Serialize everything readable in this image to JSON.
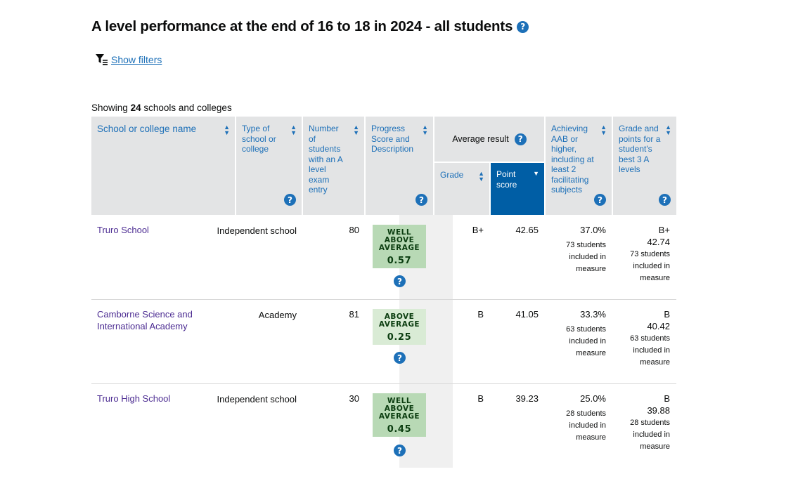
{
  "page_title": "A level performance at the end of 16 to 18 in 2024 - all students",
  "filters_link": "Show filters",
  "showing": {
    "prefix": "Showing",
    "count": "24",
    "suffix": "schools and colleges"
  },
  "headers": {
    "name": "School or college name",
    "type": "Type of school or college",
    "students": "Number of students with an A level exam entry",
    "progress": "Progress Score and Description",
    "average_result": "Average result",
    "grade": "Grade",
    "point_score": "Point score",
    "aab": "Achieving AAB or higher, including at least 2 facilitating subjects",
    "best3": "Grade and points for a student's best 3 A levels"
  },
  "rows": [
    {
      "name": "Truro School",
      "type": "Independent school",
      "students": "80",
      "progress_desc": "WELL ABOVE AVERAGE",
      "progress_score": "0.57",
      "grade": "B+",
      "point_score": "42.65",
      "aab_pct": "37.0%",
      "aab_students": "73 students included in measure",
      "best3_grade": "B+",
      "best3_points": "42.74",
      "best3_students": "73 students included in measure"
    },
    {
      "name": "Camborne Science and International Academy",
      "type": "Academy",
      "students": "81",
      "progress_desc": "ABOVE AVERAGE",
      "progress_score": "0.25",
      "grade": "B",
      "point_score": "41.05",
      "aab_pct": "33.3%",
      "aab_students": "63 students included in measure",
      "best3_grade": "B",
      "best3_points": "40.42",
      "best3_students": "63 students included in measure"
    },
    {
      "name": "Truro High School",
      "type": "Independent school",
      "students": "30",
      "progress_desc": "WELL ABOVE AVERAGE",
      "progress_score": "0.45",
      "grade": "B",
      "point_score": "39.23",
      "aab_pct": "25.0%",
      "aab_students": "28 students included in measure",
      "best3_grade": "B",
      "best3_points": "39.88",
      "best3_students": "28 students included in measure"
    }
  ],
  "colors": {
    "link": "#1d70b8",
    "visited": "#4c2c92",
    "sorted_header": "#005ea5",
    "header_bg": "#e3e4e5"
  }
}
